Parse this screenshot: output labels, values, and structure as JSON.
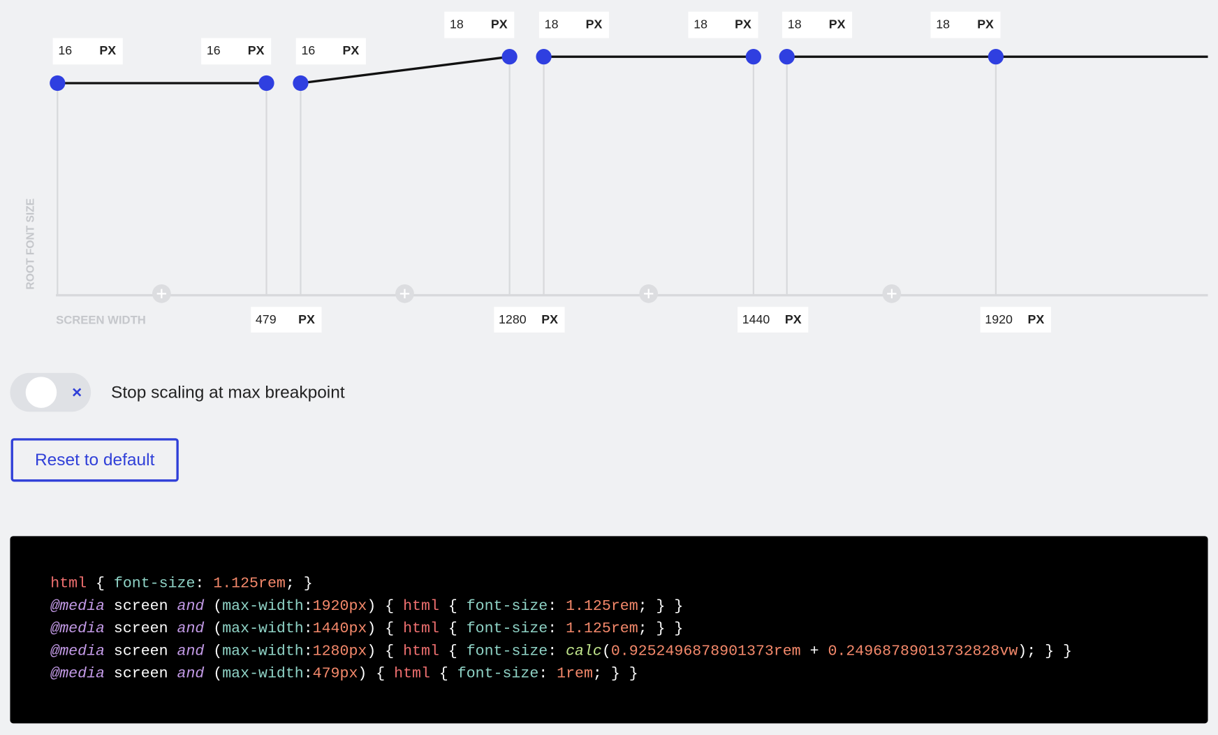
{
  "breakpoints": {
    "y_axis_label": "ROOT FONT SIZE",
    "x_axis_label": "SCREEN WIDTH",
    "segments": [
      {
        "start": {
          "value": 16,
          "unit": "PX"
        },
        "end": {
          "value": 16,
          "unit": "PX"
        }
      },
      {
        "start": {
          "value": 16,
          "unit": "PX"
        },
        "end": {
          "value": 18,
          "unit": "PX"
        }
      },
      {
        "start": {
          "value": 18,
          "unit": "PX"
        },
        "end": {
          "value": 18,
          "unit": "PX"
        }
      },
      {
        "start": {
          "value": 18,
          "unit": "PX"
        },
        "end": {
          "value": 18,
          "unit": "PX"
        }
      }
    ],
    "widths": [
      {
        "value": 479,
        "unit": "PX"
      },
      {
        "value": 1280,
        "unit": "PX"
      },
      {
        "value": 1440,
        "unit": "PX"
      },
      {
        "value": 1920,
        "unit": "PX"
      }
    ]
  },
  "toggle": {
    "label": "Stop scaling at max breakpoint"
  },
  "reset_button": {
    "label": "Reset to default"
  },
  "code": {
    "lines": [
      [
        {
          "text": "html",
          "color": "#ee6f6f"
        },
        {
          "text": " { ",
          "color": "#ffffff"
        },
        {
          "text": "font-size",
          "color": "#8fd3c6"
        },
        {
          "text": ": ",
          "color": "#ffffff"
        },
        {
          "text": "1.125rem",
          "color": "#f5896b"
        },
        {
          "text": "; }",
          "color": "#ffffff"
        }
      ],
      [
        {
          "text": "@media",
          "color": "#c49be8",
          "italic": true
        },
        {
          "text": " screen ",
          "color": "#ffffff"
        },
        {
          "text": "and",
          "color": "#c49be8",
          "italic": true
        },
        {
          "text": " (",
          "color": "#ffffff"
        },
        {
          "text": "max-width",
          "color": "#8fd3c6"
        },
        {
          "text": ":",
          "color": "#ffffff"
        },
        {
          "text": "1920px",
          "color": "#f5896b"
        },
        {
          "text": ") { ",
          "color": "#ffffff"
        },
        {
          "text": "html",
          "color": "#ee6f6f"
        },
        {
          "text": " { ",
          "color": "#ffffff"
        },
        {
          "text": "font-size",
          "color": "#8fd3c6"
        },
        {
          "text": ": ",
          "color": "#ffffff"
        },
        {
          "text": "1.125rem",
          "color": "#f5896b"
        },
        {
          "text": "; } }",
          "color": "#ffffff"
        }
      ],
      [
        {
          "text": "@media",
          "color": "#c49be8",
          "italic": true
        },
        {
          "text": " screen ",
          "color": "#ffffff"
        },
        {
          "text": "and",
          "color": "#c49be8",
          "italic": true
        },
        {
          "text": " (",
          "color": "#ffffff"
        },
        {
          "text": "max-width",
          "color": "#8fd3c6"
        },
        {
          "text": ":",
          "color": "#ffffff"
        },
        {
          "text": "1440px",
          "color": "#f5896b"
        },
        {
          "text": ") { ",
          "color": "#ffffff"
        },
        {
          "text": "html",
          "color": "#ee6f6f"
        },
        {
          "text": " { ",
          "color": "#ffffff"
        },
        {
          "text": "font-size",
          "color": "#8fd3c6"
        },
        {
          "text": ": ",
          "color": "#ffffff"
        },
        {
          "text": "1.125rem",
          "color": "#f5896b"
        },
        {
          "text": "; } }",
          "color": "#ffffff"
        }
      ],
      [
        {
          "text": "@media",
          "color": "#c49be8",
          "italic": true
        },
        {
          "text": " screen ",
          "color": "#ffffff"
        },
        {
          "text": "and",
          "color": "#c49be8",
          "italic": true
        },
        {
          "text": " (",
          "color": "#ffffff"
        },
        {
          "text": "max-width",
          "color": "#8fd3c6"
        },
        {
          "text": ":",
          "color": "#ffffff"
        },
        {
          "text": "1280px",
          "color": "#f5896b"
        },
        {
          "text": ") { ",
          "color": "#ffffff"
        },
        {
          "text": "html",
          "color": "#ee6f6f"
        },
        {
          "text": " { ",
          "color": "#ffffff"
        },
        {
          "text": "font-size",
          "color": "#8fd3c6"
        },
        {
          "text": ": ",
          "color": "#ffffff"
        },
        {
          "text": "calc",
          "color": "#c3e88d",
          "italic": true
        },
        {
          "text": "(",
          "color": "#ffffff"
        },
        {
          "text": "0.9252496878901373rem",
          "color": "#f5896b"
        },
        {
          "text": " + ",
          "color": "#ffffff"
        },
        {
          "text": "0.24968789013732828vw",
          "color": "#f5896b"
        },
        {
          "text": "); } }",
          "color": "#ffffff"
        }
      ],
      [
        {
          "text": "@media",
          "color": "#c49be8",
          "italic": true
        },
        {
          "text": " screen ",
          "color": "#ffffff"
        },
        {
          "text": "and",
          "color": "#c49be8",
          "italic": true
        },
        {
          "text": " (",
          "color": "#ffffff"
        },
        {
          "text": "max-width",
          "color": "#8fd3c6"
        },
        {
          "text": ":",
          "color": "#ffffff"
        },
        {
          "text": "479px",
          "color": "#f5896b"
        },
        {
          "text": ") { ",
          "color": "#ffffff"
        },
        {
          "text": "html",
          "color": "#ee6f6f"
        },
        {
          "text": " { ",
          "color": "#ffffff"
        },
        {
          "text": "font-size",
          "color": "#8fd3c6"
        },
        {
          "text": ": ",
          "color": "#ffffff"
        },
        {
          "text": "1rem",
          "color": "#f5896b"
        },
        {
          "text": "; } }",
          "color": "#ffffff"
        }
      ]
    ]
  }
}
